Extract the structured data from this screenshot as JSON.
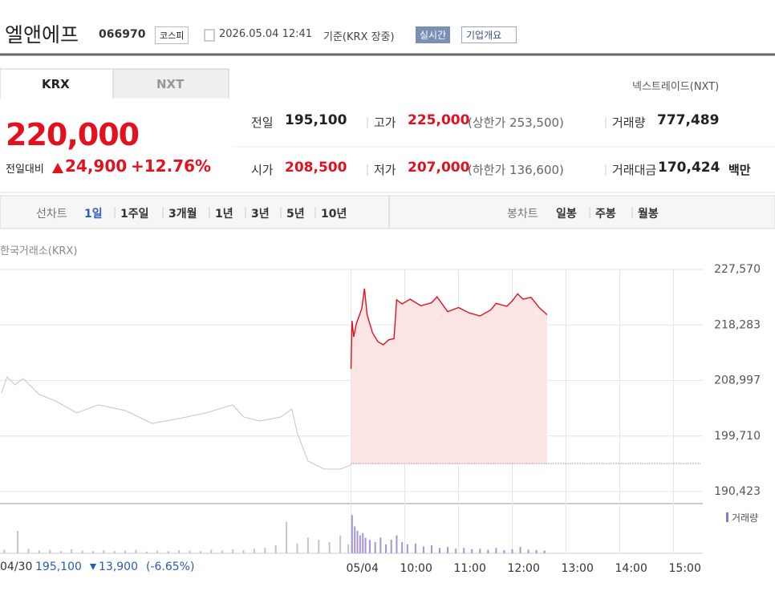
{
  "header": {
    "name": "엘앤에프",
    "code": "066970",
    "market": "코스피",
    "datetime": "2026.05.04 12:41",
    "basis": "기준(KRX 장중)",
    "realtime": "실시간",
    "company": "기업개요"
  },
  "tabs": {
    "items": [
      "KRX",
      "NXT"
    ],
    "link": "넥스트레이드(NXT)"
  },
  "quote": {
    "price": "220,000",
    "change_label": "전일대비",
    "change": "24,900",
    "change_pct": "+12.76%"
  },
  "stats": [
    {
      "label": "전일",
      "value": "195,100"
    },
    {
      "label": "고가",
      "value": "225,000",
      "note": "(상한가 253,500)"
    },
    {
      "label": "거래량",
      "value": "777,489"
    },
    {
      "label": "시가",
      "value": "208,500"
    },
    {
      "label": "저가",
      "value": "207,000",
      "note": "(하한가 136,600)"
    },
    {
      "label": "거래대금",
      "value": "170,424",
      "unit": "백만"
    }
  ],
  "chart_tabs": {
    "line_label": "선차트",
    "periods": [
      "1일",
      "1주일",
      "3개월",
      "1년",
      "3년",
      "5년",
      "10년"
    ],
    "candle_label": "봉차트",
    "candles": [
      "일봉",
      "주봉",
      "월봉"
    ]
  },
  "chart_data": {
    "type": "line",
    "title": "한국거래소(KRX)",
    "xlim": [
      2.5,
      15.5
    ],
    "xticks": [
      {
        "value": 9,
        "label": "05/04"
      },
      {
        "value": 10,
        "label": "10:00"
      },
      {
        "value": 11,
        "label": "11:00"
      },
      {
        "value": 12,
        "label": "12:00"
      },
      {
        "value": 13,
        "label": "13:00"
      },
      {
        "value": 14,
        "label": "14:00"
      },
      {
        "value": 15,
        "label": "15:00"
      }
    ],
    "ylim": [
      188420,
      227570
    ],
    "yticks": [
      {
        "value": 190423,
        "label": "190,423"
      },
      {
        "value": 199710,
        "label": "199,710"
      },
      {
        "value": 208997,
        "label": "208,997"
      },
      {
        "value": 218283,
        "label": "218,283"
      },
      {
        "value": 227570,
        "label": "227,570"
      }
    ],
    "grid": true,
    "reference_value": 195100,
    "series": [
      {
        "color": "#c9c9c9",
        "x": [
          2.5,
          2.6,
          2.75,
          2.9,
          3.2,
          3.5,
          3.9,
          4.3,
          4.8,
          5.3,
          5.8,
          6.3,
          6.8,
          7.0,
          7.3,
          7.7,
          7.9,
          8.0,
          8.2,
          8.5,
          8.8,
          9.0
        ],
        "values": [
          206930,
          209610,
          208270,
          209340,
          206660,
          205590,
          203580,
          204920,
          203980,
          201830,
          202640,
          203580,
          204920,
          202910,
          202230,
          202910,
          204250,
          200220,
          195530,
          194190,
          194190,
          194860
        ]
      },
      {
        "color": "#e3101e",
        "fill": "#fde4e5",
        "x": [
          9.0,
          9.02,
          9.05,
          9.1,
          9.2,
          9.25,
          9.3,
          9.4,
          9.5,
          9.6,
          9.7,
          9.8,
          9.85,
          9.95,
          10.1,
          10.3,
          10.5,
          10.6,
          10.8,
          11.0,
          11.2,
          11.4,
          11.6,
          11.7,
          11.9,
          12.0,
          12.1,
          12.2,
          12.35,
          12.5,
          12.65
        ],
        "values": [
          210950,
          218990,
          216300,
          218500,
          221000,
          224350,
          220000,
          216980,
          215500,
          214970,
          215800,
          216000,
          222500,
          221800,
          222600,
          221500,
          222000,
          223000,
          220500,
          221200,
          220300,
          219800,
          220800,
          221900,
          221400,
          222300,
          223500,
          222600,
          222900,
          221200,
          220000
        ]
      }
    ],
    "volume": {
      "label": "거래량",
      "ylim": [
        0,
        100
      ],
      "series": [
        {
          "color": "#c4c4c4",
          "x": [
            2.55,
            2.8,
            3.0,
            3.2,
            3.4,
            3.6,
            3.8,
            4.0,
            4.2,
            4.4,
            4.6,
            4.8,
            5.0,
            5.2,
            5.4,
            5.6,
            5.8,
            6.0,
            6.2,
            6.4,
            6.6,
            6.8,
            7.0,
            7.2,
            7.4,
            7.6,
            7.8,
            8.0,
            8.2,
            8.4,
            8.6,
            8.8,
            8.95
          ],
          "values": [
            8,
            50,
            10,
            6,
            8,
            5,
            9,
            6,
            5,
            7,
            5,
            6,
            8,
            4,
            6,
            5,
            7,
            6,
            5,
            8,
            6,
            9,
            7,
            10,
            12,
            18,
            70,
            22,
            35,
            30,
            25,
            40,
            20
          ]
        },
        {
          "color": "#a594d8",
          "x": [
            9.02,
            9.07,
            9.12,
            9.17,
            9.22,
            9.27,
            9.35,
            9.45,
            9.55,
            9.65,
            9.75,
            9.85,
            9.95,
            10.05,
            10.2,
            10.35,
            10.5,
            10.65,
            10.8,
            10.95,
            11.1,
            11.25,
            11.4,
            11.55,
            11.7,
            11.85,
            12.0,
            12.15,
            12.3,
            12.45,
            12.6
          ],
          "values": [
            85,
            60,
            50,
            40,
            45,
            35,
            30,
            25,
            35,
            20,
            30,
            40,
            25,
            20,
            22,
            15,
            18,
            12,
            14,
            10,
            12,
            9,
            10,
            8,
            12,
            7,
            9,
            14,
            8,
            7,
            6
          ]
        }
      ]
    }
  },
  "footer": {
    "date": "04/30",
    "close": "195,100",
    "change": "13,900",
    "change_pct": "(-6.65%)"
  }
}
